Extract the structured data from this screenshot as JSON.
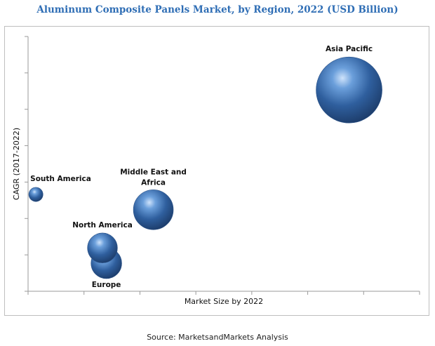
{
  "title": "Aluminum Composite Panels Market, by Region, 2022 (USD Billion)",
  "source": "Source: MarketsandMarkets Analysis",
  "chart_data": {
    "type": "bubble",
    "title": "Aluminum Composite Panels Market, by Region, 2022 (USD Billion)",
    "xlabel": "Market Size by 2022",
    "ylabel": "CAGR (2017-2022)",
    "x_ticks_labeled": false,
    "y_ticks_labeled": false,
    "grid": false,
    "bubble_color": "#3a6fb8",
    "points": [
      {
        "label": "Asia Pacific",
        "x": 0.82,
        "y": 0.79,
        "size": 1.0
      },
      {
        "label": "Middle East and Africa",
        "x": 0.32,
        "y": 0.32,
        "size": 0.3
      },
      {
        "label": "North America",
        "x": 0.19,
        "y": 0.17,
        "size": 0.14
      },
      {
        "label": "Europe",
        "x": 0.2,
        "y": 0.11,
        "size": 0.15
      },
      {
        "label": "South America",
        "x": 0.02,
        "y": 0.38,
        "size": 0.01
      }
    ]
  }
}
